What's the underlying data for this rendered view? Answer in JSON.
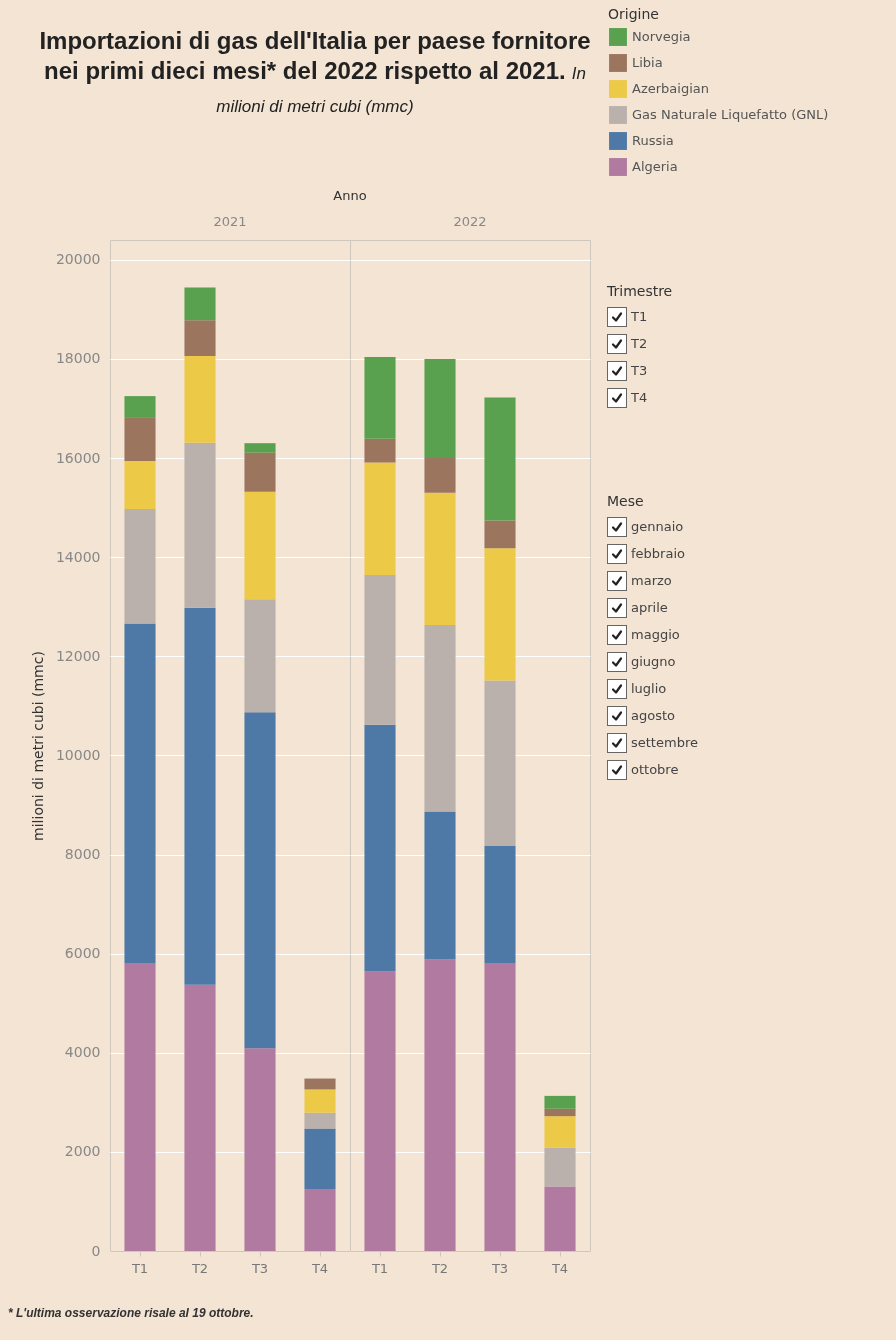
{
  "chart_data": [
    {
      "type": "other",
      "title": "Importazioni di gas dell'Italia per paese fornitore nei primi dieci mesi* del 2022 rispetto al 2021.",
      "subtitle": "In milioni di metri cubi (mmc)",
      "annotations": [
        "Anno",
        "* L'ultima osservazione risale al 19 ottobre."
      ]
    },
    {
      "type": "bar",
      "stacked": true,
      "title": "2021",
      "ylabel": "milioni di metri cubi (mmc)",
      "categories": [
        "T1",
        "T2",
        "T3",
        "T4"
      ],
      "ylim": [
        0,
        20400
      ],
      "yticks": [
        0,
        2000,
        4000,
        6000,
        8000,
        10000,
        12000,
        14000,
        16000,
        18000,
        20000
      ],
      "grid": "y",
      "legend": false,
      "series": [
        {
          "color": "#b07aa1",
          "values": [
            5810,
            5370,
            4090,
            1250
          ]
        },
        {
          "color": "#4e79a7",
          "values": [
            6850,
            7610,
            6780,
            1220
          ]
        },
        {
          "color": "#bab0ac",
          "values": [
            2310,
            3330,
            2280,
            320
          ]
        },
        {
          "color": "#edc948",
          "values": [
            970,
            1750,
            2170,
            470
          ]
        },
        {
          "color": "#9c755f",
          "values": [
            870,
            720,
            790,
            220
          ]
        },
        {
          "color": "#59a14f",
          "values": [
            440,
            660,
            190,
            null
          ]
        }
      ]
    },
    {
      "type": "bar",
      "stacked": true,
      "title": "2022",
      "categories": [
        "T1",
        "T2",
        "T3",
        "T4"
      ],
      "ylim": [
        0,
        20400
      ],
      "yticks": [
        0,
        2000,
        4000,
        6000,
        8000,
        10000,
        12000,
        14000,
        16000,
        18000,
        20000
      ],
      "grid": "y",
      "tick_labels": "x",
      "legend": "top right",
      "legend_title": "Origine",
      "series": [
        {
          "name": "Algeria",
          "color": "#b07aa1",
          "values": [
            5640,
            5880,
            5810,
            1300
          ]
        },
        {
          "name": "Russia",
          "color": "#4e79a7",
          "values": [
            4980,
            2990,
            2360,
            null
          ]
        },
        {
          "name": "Gas Naturale Liquefatto (GNL)",
          "color": "#bab0ac",
          "values": [
            3020,
            3760,
            3340,
            790
          ]
        },
        {
          "name": "Azerbaigian",
          "color": "#edc948",
          "values": [
            2270,
            2670,
            2670,
            630
          ]
        },
        {
          "name": "Libia",
          "color": "#9c755f",
          "values": [
            480,
            700,
            560,
            150
          ]
        },
        {
          "name": "Norvegia",
          "color": "#59a14f",
          "values": [
            1650,
            2000,
            2480,
            260
          ]
        }
      ]
    },
    {
      "type": "other",
      "title": "Trimestre",
      "annotations": [
        "T1",
        "T2",
        "T3",
        "T4"
      ]
    },
    {
      "type": "other",
      "title": "Mese",
      "annotations": [
        "gennaio",
        "febbraio",
        "marzo",
        "aprile",
        "maggio",
        "giugno",
        "luglio",
        "agosto",
        "settembre",
        "ottobre"
      ]
    }
  ]
}
